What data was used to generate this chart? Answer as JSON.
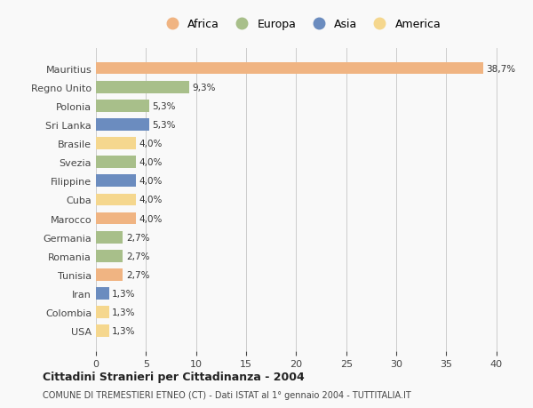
{
  "categories": [
    "Mauritius",
    "Regno Unito",
    "Polonia",
    "Sri Lanka",
    "Brasile",
    "Svezia",
    "Filippine",
    "Cuba",
    "Marocco",
    "Germania",
    "Romania",
    "Tunisia",
    "Iran",
    "Colombia",
    "USA"
  ],
  "values": [
    38.7,
    9.3,
    5.3,
    5.3,
    4.0,
    4.0,
    4.0,
    4.0,
    4.0,
    2.7,
    2.7,
    2.7,
    1.3,
    1.3,
    1.3
  ],
  "labels": [
    "38,7%",
    "9,3%",
    "5,3%",
    "5,3%",
    "4,0%",
    "4,0%",
    "4,0%",
    "4,0%",
    "4,0%",
    "2,7%",
    "2,7%",
    "2,7%",
    "1,3%",
    "1,3%",
    "1,3%"
  ],
  "colors": [
    "#f0b482",
    "#a8bf8a",
    "#a8bf8a",
    "#6b8cbf",
    "#f5d78e",
    "#a8bf8a",
    "#6b8cbf",
    "#f5d78e",
    "#f0b482",
    "#a8bf8a",
    "#a8bf8a",
    "#f0b482",
    "#6b8cbf",
    "#f5d78e",
    "#f5d78e"
  ],
  "legend_labels": [
    "Africa",
    "Europa",
    "Asia",
    "America"
  ],
  "legend_colors": [
    "#f0b482",
    "#a8bf8a",
    "#6b8cbf",
    "#f5d78e"
  ],
  "title1": "Cittadini Stranieri per Cittadinanza - 2004",
  "title2": "COMUNE DI TREMESTIERI ETNEO (CT) - Dati ISTAT al 1° gennaio 2004 - TUTTITALIA.IT",
  "xlim": [
    0,
    41
  ],
  "xticks": [
    0,
    5,
    10,
    15,
    20,
    25,
    30,
    35,
    40
  ],
  "background_color": "#f9f9f9",
  "grid_color": "#cccccc",
  "bar_height": 0.65
}
